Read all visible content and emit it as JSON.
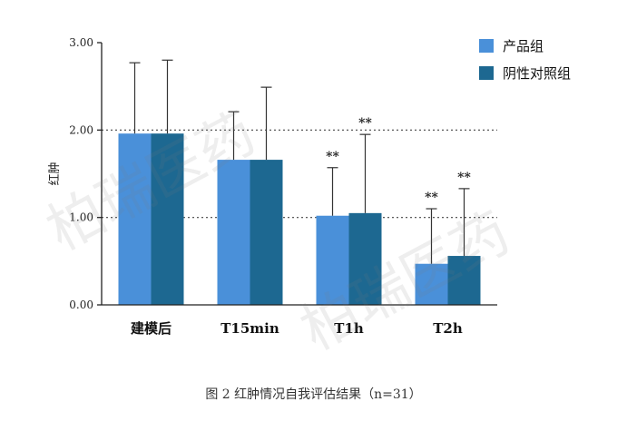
{
  "chart_data": {
    "type": "bar",
    "categories": [
      "建模后",
      "T15min",
      "T1h",
      "T2h"
    ],
    "series": [
      {
        "name": "产品组",
        "values": [
          1.96,
          1.66,
          1.02,
          0.47
        ],
        "errors": [
          0.81,
          0.55,
          0.55,
          0.63
        ],
        "color": "#4a90d9",
        "significance": [
          "",
          "",
          "**",
          "**"
        ]
      },
      {
        "name": "阴性对照组",
        "values": [
          1.96,
          1.66,
          1.05,
          0.56
        ],
        "errors": [
          0.84,
          0.83,
          0.9,
          0.77
        ],
        "color": "#1d6891",
        "significance": [
          "",
          "",
          "**",
          "**"
        ]
      }
    ],
    "ylabel": "红肿",
    "xlabel": "",
    "ylim": [
      0,
      3
    ],
    "yticks": [
      "0.00",
      "1.00",
      "2.00",
      "3.00"
    ],
    "reference_lines": [
      1.0,
      2.0
    ],
    "legend_position": "top-right"
  },
  "caption": "图 2  红肿情况自我评估结果（n=31）",
  "watermark": "柏瑞医药"
}
